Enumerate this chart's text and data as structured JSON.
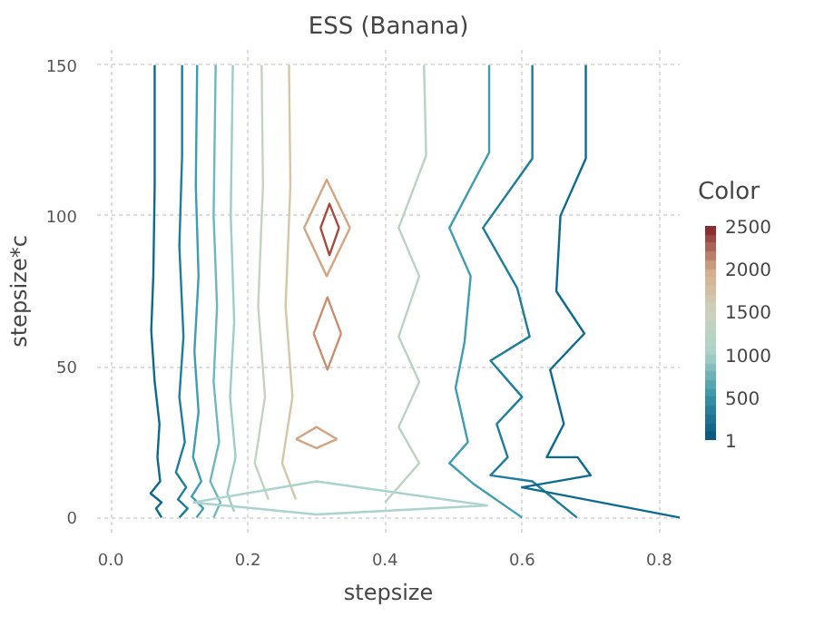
{
  "chart_data": {
    "type": "line",
    "title": "ESS (Banana)",
    "xlabel": "stepsize",
    "ylabel": "stepsize*c",
    "clabel": "Color",
    "xlim": [
      -0.02,
      0.83
    ],
    "ylim": [
      -5,
      155
    ],
    "xticks": [
      {
        "value": 0,
        "label": "0.0"
      },
      0.2,
      0.4,
      0.6,
      0.8
    ],
    "yticks": [
      0,
      50,
      100,
      150
    ],
    "clim": [
      1,
      2500
    ],
    "cticks": [
      1,
      500,
      1000,
      1500,
      2000,
      2500
    ],
    "grid": true,
    "line_style": "solid",
    "series": [
      {
        "color": "#0b6a8f",
        "x": [
          0.064,
          0.064,
          0.062,
          0.059,
          0.064,
          0.071,
          0.068,
          0.072,
          0.058,
          0.074,
          0.066,
          0.074
        ],
        "values": [
          150,
          110,
          80,
          62,
          45,
          31,
          20,
          12,
          8,
          5,
          3,
          0
        ]
      },
      {
        "color": "#1c7d9c",
        "x": [
          0.104,
          0.104,
          0.1,
          0.106,
          0.1,
          0.108,
          0.095,
          0.11,
          0.098,
          0.112,
          0.1
        ],
        "values": [
          150,
          120,
          90,
          60,
          40,
          25,
          15,
          10,
          6,
          3,
          0
        ]
      },
      {
        "color": "#3e9db0",
        "x": [
          0.126,
          0.124,
          0.128,
          0.122,
          0.128,
          0.12,
          0.132,
          0.118,
          0.135,
          0.125
        ],
        "values": [
          150,
          110,
          80,
          55,
          35,
          20,
          12,
          7,
          3,
          0
        ]
      },
      {
        "color": "#6cb8bd",
        "x": [
          0.153,
          0.15,
          0.155,
          0.15,
          0.158,
          0.145,
          0.16,
          0.15
        ],
        "values": [
          150,
          100,
          70,
          45,
          25,
          12,
          5,
          0
        ]
      },
      {
        "color": "#9ccdc6",
        "x": [
          0.178,
          0.175,
          0.18,
          0.174,
          0.182,
          0.17,
          0.18
        ],
        "values": [
          150,
          100,
          65,
          40,
          20,
          8,
          2
        ]
      },
      {
        "color": "#c2d3c0",
        "x": [
          0.22,
          0.222,
          0.215,
          0.225,
          0.21,
          0.23
        ],
        "values": [
          150,
          110,
          70,
          40,
          18,
          6
        ]
      },
      {
        "color": "#d6c6a6",
        "x": [
          0.26,
          0.262,
          0.255,
          0.265,
          0.25,
          0.27
        ],
        "values": [
          150,
          110,
          70,
          40,
          18,
          6
        ]
      },
      {
        "color": "#d3a582",
        "x": [
          0.282,
          0.315,
          0.349
        ],
        "values": [
          96,
          112,
          96
        ]
      },
      {
        "color": "#d3a582",
        "x": [
          0.282,
          0.315,
          0.349
        ],
        "values": [
          96,
          80,
          96
        ]
      },
      {
        "color": "#a8483f",
        "x": [
          0.306,
          0.319,
          0.333
        ],
        "values": [
          96,
          104,
          96
        ]
      },
      {
        "color": "#a8483f",
        "x": [
          0.306,
          0.319,
          0.333
        ],
        "values": [
          96,
          87,
          96
        ]
      },
      {
        "color": "#c98e6e",
        "x": [
          0.296,
          0.316,
          0.336
        ],
        "values": [
          61,
          73,
          61
        ]
      },
      {
        "color": "#c98e6e",
        "x": [
          0.296,
          0.316,
          0.336
        ],
        "values": [
          61,
          49,
          61
        ]
      },
      {
        "color": "#d3a582",
        "x": [
          0.27,
          0.3,
          0.33
        ],
        "values": [
          26,
          30,
          26
        ]
      },
      {
        "color": "#d3a582",
        "x": [
          0.27,
          0.3,
          0.33
        ],
        "values": [
          26,
          23,
          26
        ]
      },
      {
        "color": "#a9d3cc",
        "x": [
          0.12,
          0.3,
          0.55
        ],
        "values": [
          5,
          12,
          4
        ]
      },
      {
        "color": "#a9d3cc",
        "x": [
          0.12,
          0.3,
          0.55
        ],
        "values": [
          5,
          1,
          4
        ]
      },
      {
        "color": "#b9d3c2",
        "x": [
          0.457,
          0.46,
          0.42,
          0.45,
          0.42,
          0.45,
          0.42,
          0.45,
          0.4
        ],
        "values": [
          150,
          120,
          96,
          80,
          60,
          45,
          30,
          18,
          5
        ]
      },
      {
        "color": "#3e9db0",
        "x": [
          0.552,
          0.552,
          0.494,
          0.525,
          0.516,
          0.503,
          0.521,
          0.494,
          0.53,
          0.6
        ],
        "values": [
          150,
          121,
          96,
          80,
          58,
          43,
          25,
          18,
          11,
          0
        ]
      },
      {
        "color": "#1c7d9c",
        "x": [
          0.615,
          0.615,
          0.543,
          0.593,
          0.611,
          0.554,
          0.6,
          0.563,
          0.579,
          0.554,
          0.615,
          0.68
        ],
        "values": [
          150,
          119,
          96,
          76,
          60,
          52,
          40,
          31,
          20,
          14,
          12,
          0
        ]
      },
      {
        "color": "#0b6a8f",
        "x": [
          0.693,
          0.693,
          0.656,
          0.65,
          0.691,
          0.641,
          0.661,
          0.636,
          0.681,
          0.7,
          0.6,
          0.83
        ],
        "values": [
          150,
          119,
          100,
          75,
          61,
          49,
          31,
          20,
          20,
          14,
          10,
          0
        ]
      }
    ]
  }
}
